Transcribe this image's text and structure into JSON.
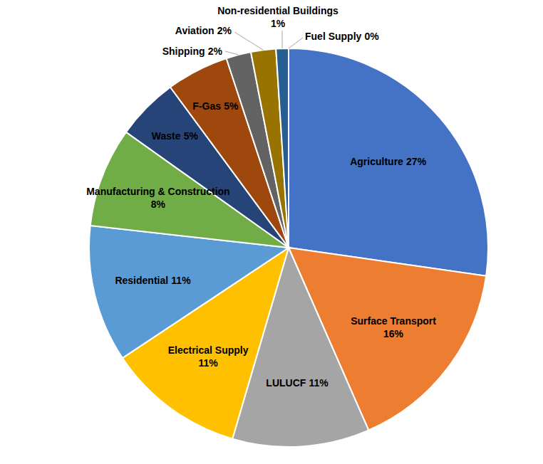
{
  "chart_data": {
    "type": "pie",
    "categories": [
      "Agriculture",
      "Surface Transport",
      "LULUCF",
      "Electrical Supply",
      "Residential",
      "Manufacturing & Construction",
      "Waste",
      "F-Gas",
      "Shipping",
      "Aviation",
      "Non-residential Buildings",
      "Fuel Supply"
    ],
    "values": [
      27,
      16,
      11,
      11,
      11,
      8,
      5,
      5,
      2,
      2,
      1,
      0
    ],
    "value_labels": [
      "27%",
      "16%",
      "11%",
      "11%",
      "11%",
      "8%",
      "5%",
      "5%",
      "2%",
      "2%",
      "1%",
      "0%"
    ],
    "colors": [
      "#4472c4",
      "#ed7d31",
      "#a5a5a5",
      "#ffc000",
      "#5b9bd5",
      "#70ad47",
      "#264478",
      "#9e480e",
      "#636363",
      "#997300",
      "#255e91",
      "#43682b"
    ],
    "data_labels": true
  }
}
